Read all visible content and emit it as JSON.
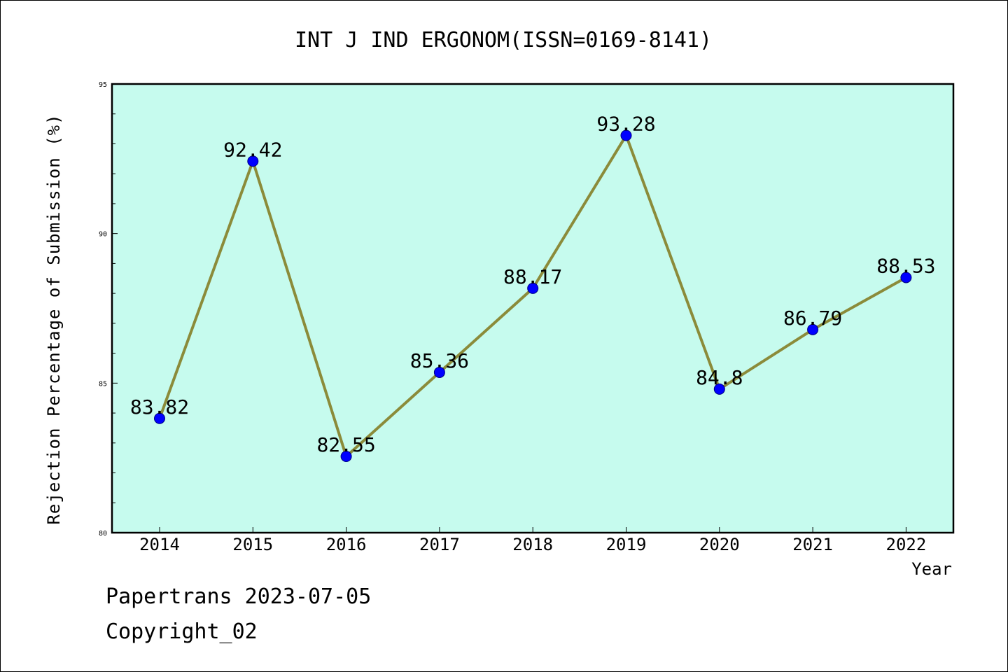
{
  "chart_data": {
    "type": "line",
    "title": "INT J IND ERGONOM(ISSN=0169-8141)",
    "xlabel": "Year",
    "ylabel": "Rejection Percentage of Submission (%)",
    "categories": [
      "2014",
      "2015",
      "2016",
      "2017",
      "2018",
      "2019",
      "2020",
      "2021",
      "2022"
    ],
    "values": [
      83.82,
      92.42,
      82.55,
      85.36,
      88.17,
      93.28,
      84.8,
      86.79,
      88.53
    ],
    "data_labels": [
      "83.82",
      "92.42",
      "82.55",
      "85.36",
      "88.17",
      "93.28",
      "84.8",
      "86.79",
      "88.53"
    ],
    "ylim": [
      80,
      95
    ],
    "yticks": [
      80,
      85,
      90,
      95
    ],
    "ytick_labels": [
      "80",
      "85",
      "90",
      "95"
    ],
    "y_minor_step": 1,
    "grid": false,
    "legend": "none",
    "colors": {
      "plot_background": "#c6fbee",
      "line": "#8b8b3a",
      "marker": "#0000ff",
      "axis": "#000000"
    }
  },
  "footer": {
    "line1": "Papertrans 2023-07-05",
    "line2": "Copyright_02"
  }
}
